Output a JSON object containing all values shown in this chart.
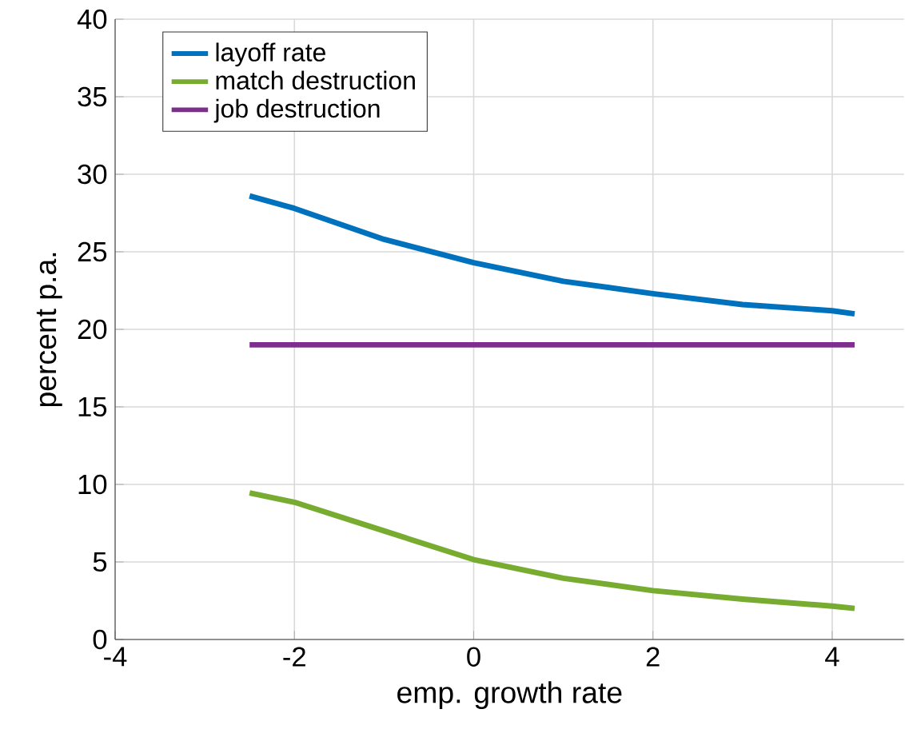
{
  "chart_data": {
    "type": "line",
    "xlabel": "emp. growth rate",
    "ylabel": "percent p.a.",
    "xlim": [
      -4,
      4.8
    ],
    "xticks": [
      -4,
      -2,
      0,
      2,
      4
    ],
    "ylim": [
      0,
      40
    ],
    "yticks": [
      0,
      5,
      10,
      15,
      20,
      25,
      30,
      35,
      40
    ],
    "grid": true,
    "legend": "top left",
    "marker": "none",
    "line_style": "solid",
    "series": [
      {
        "name": "layoff rate",
        "color": "#0072bd",
        "x": [
          -2.5,
          -2,
          -1,
          0,
          1,
          2,
          3,
          4,
          4.25
        ],
        "values": [
          28.6,
          27.8,
          25.8,
          24.3,
          23.1,
          22.3,
          21.6,
          21.2,
          21.0
        ]
      },
      {
        "name": "match destruction",
        "color": "#77ac30",
        "x": [
          -2.5,
          -2,
          -1,
          0,
          1,
          2,
          3,
          4,
          4.25
        ],
        "values": [
          9.45,
          8.85,
          7.0,
          5.15,
          3.95,
          3.15,
          2.6,
          2.15,
          2.0
        ]
      },
      {
        "name": "job destruction",
        "color": "#7e2f8e",
        "x": [
          -2.5,
          4.25
        ],
        "values": [
          19.0,
          19.0
        ]
      }
    ]
  }
}
